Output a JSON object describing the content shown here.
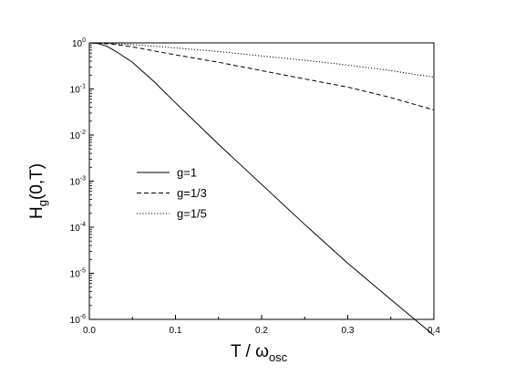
{
  "chart_data": {
    "type": "line",
    "xlabel": {
      "main": "T / ω",
      "sub": "osc"
    },
    "ylabel": {
      "main": "H",
      "sub": "g",
      "tail": "(0,T)"
    },
    "xlim": [
      0.0,
      0.4
    ],
    "ylim_log10": [
      -6,
      0
    ],
    "y_scale": "log",
    "grid": false,
    "legend_position": "center-left",
    "x_ticks": [
      {
        "value": 0.0,
        "label": "0.0"
      },
      {
        "value": 0.1,
        "label": "0.1"
      },
      {
        "value": 0.2,
        "label": "0.2"
      },
      {
        "value": 0.3,
        "label": "0.3"
      },
      {
        "value": 0.4,
        "label": "0.4"
      }
    ],
    "y_ticks": [
      {
        "value": 1,
        "base": "10",
        "exp": "0"
      },
      {
        "value": 0.1,
        "base": "10",
        "exp": "-1"
      },
      {
        "value": 0.01,
        "base": "10",
        "exp": "-2"
      },
      {
        "value": 0.001,
        "base": "10",
        "exp": "-3"
      },
      {
        "value": 0.0001,
        "base": "10",
        "exp": "-4"
      },
      {
        "value": 1e-05,
        "base": "10",
        "exp": "-5"
      },
      {
        "value": 1e-06,
        "base": "10",
        "exp": "-6"
      }
    ],
    "series": [
      {
        "name": "g=1",
        "style": "solid",
        "x": [
          0.0,
          0.01,
          0.02,
          0.03,
          0.05,
          0.075,
          0.1,
          0.15,
          0.2,
          0.25,
          0.3,
          0.35,
          0.4
        ],
        "y": [
          1.0,
          0.97,
          0.85,
          0.67,
          0.38,
          0.145,
          0.05,
          0.0063,
          0.00085,
          0.000115,
          1.65e-05,
          2.7e-06,
          4.5e-07
        ]
      },
      {
        "name": "g=1/3",
        "style": "dashed",
        "x": [
          0.0,
          0.025,
          0.05,
          0.1,
          0.15,
          0.2,
          0.25,
          0.3,
          0.35,
          0.4
        ],
        "y": [
          1.0,
          0.95,
          0.82,
          0.55,
          0.38,
          0.25,
          0.165,
          0.11,
          0.065,
          0.035
        ]
      },
      {
        "name": "g=1/5",
        "style": "dotted",
        "x": [
          0.0,
          0.025,
          0.05,
          0.1,
          0.15,
          0.2,
          0.25,
          0.3,
          0.35,
          0.4
        ],
        "y": [
          1.0,
          0.97,
          0.92,
          0.78,
          0.65,
          0.52,
          0.42,
          0.33,
          0.25,
          0.18
        ]
      }
    ]
  }
}
